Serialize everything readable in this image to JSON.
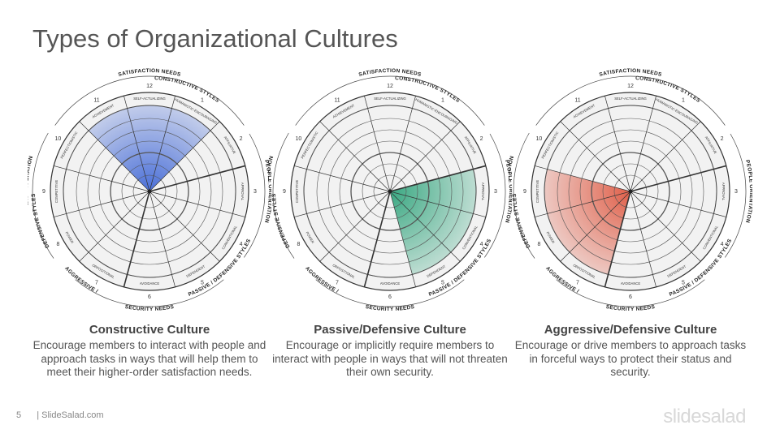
{
  "page_title": "Types of Organizational Cultures",
  "wheel": {
    "top_outer": "SATISFACTION NEEDS",
    "top_inner": "CONSTRUCTIVE STYLES",
    "right_outer": "PEOPLE ORIENTATION",
    "bottom_right": "PASSIVE / DEFENSIVE STYLES",
    "bottom_outer": "SECURITY NEEDS",
    "left_outer": "TASK OPERATION",
    "left_inner": "DEFENSIVE STYLES",
    "left_lower": "AGGRESSIVE /",
    "numbers": [
      "12",
      "1",
      "2",
      "3",
      "4",
      "5",
      "6",
      "7",
      "8",
      "9",
      "10",
      "11"
    ],
    "segments": [
      "SELF-ACTUALIZING",
      "HUMANISTIC-ENCOURAGING",
      "AFFILIATIVE",
      "APPROVAL",
      "CONVENTIONAL",
      "DEPENDENT",
      "AVOIDANCE",
      "OPPOSITIONAL",
      "POWER",
      "COMPETITIVE",
      "PERFECTIONISTIC",
      "ACHIEVEMENT"
    ]
  },
  "cultures": [
    {
      "title": "Constructive Culture",
      "description": "Encourage members to interact with people and approach tasks in ways that will help them to meet their higher-order satisfaction needs.",
      "color": "#4a6fd8",
      "highlight": [
        11,
        0,
        1
      ]
    },
    {
      "title": "Passive/Defensive  Culture",
      "description": "Encourage or implicitly require members to interact with people in ways that will not threaten their own security.",
      "color": "#3aa882",
      "highlight": [
        3,
        4,
        5
      ]
    },
    {
      "title": "Aggressive/Defensive  Culture",
      "description": "Encourage or drive members to approach tasks in forceful ways to protect their status and security.",
      "color": "#e0604a",
      "highlight": [
        7,
        8,
        9
      ]
    }
  ],
  "footer": {
    "page": "5",
    "source": "| SlideSalad.com"
  },
  "logo": "slidesalad"
}
